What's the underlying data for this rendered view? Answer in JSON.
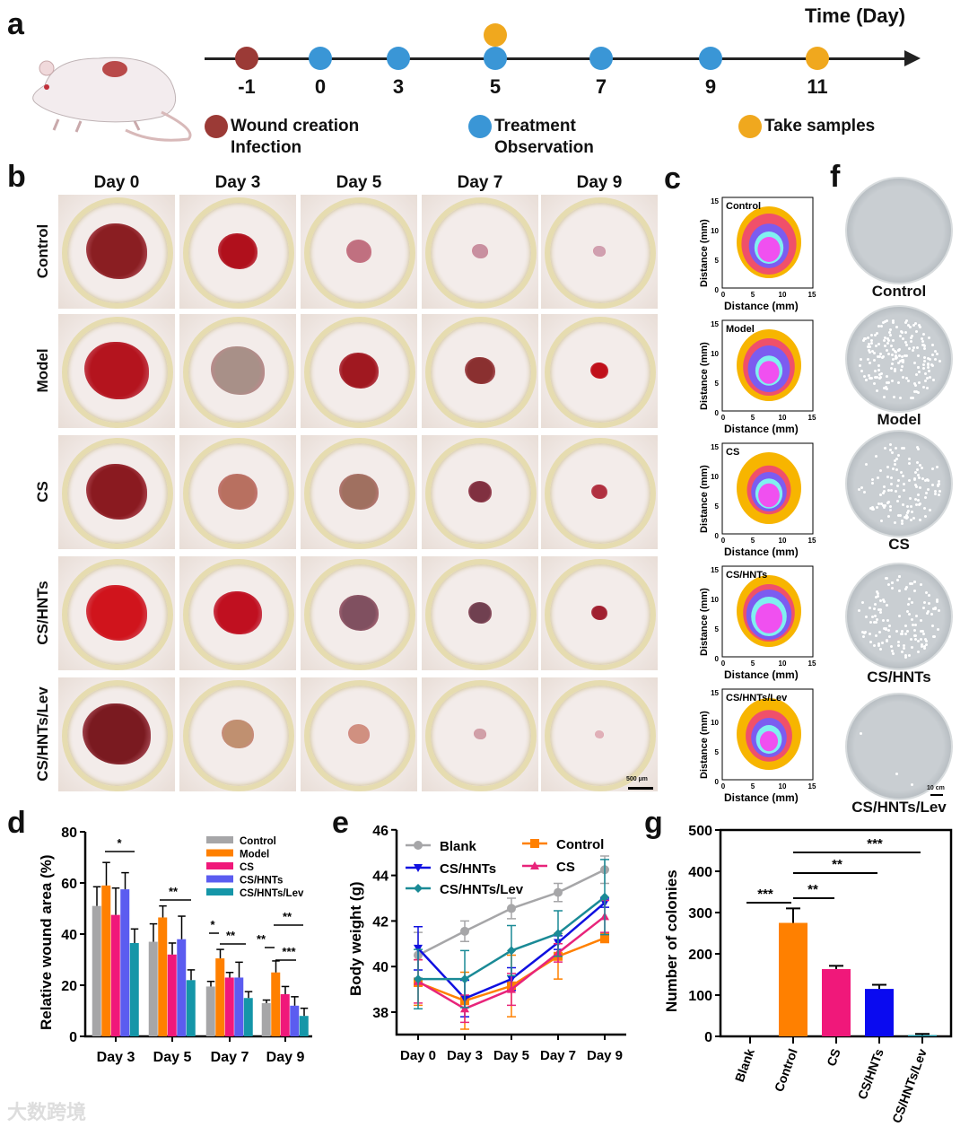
{
  "panels": {
    "a": "a",
    "b": "b",
    "c": "c",
    "d": "d",
    "e": "e",
    "f": "f",
    "g": "g"
  },
  "timeline": {
    "axis_title": "Time (Day)",
    "ticks": [
      "-1",
      "0",
      "3",
      "5",
      "7",
      "9",
      "11"
    ],
    "legend": [
      {
        "line1": "Wound creation",
        "line2": "Infection",
        "color": "#9b3a36"
      },
      {
        "line1": "Treatment",
        "line2": "Observation",
        "color": "#3a96d6"
      },
      {
        "line1": "Take samples",
        "line2": "",
        "color": "#f0a81e"
      }
    ]
  },
  "photos": {
    "columns": [
      "Day 0",
      "Day 3",
      "Day 5",
      "Day 7",
      "Day 9"
    ],
    "rows": [
      "Control",
      "Model",
      "CS",
      "CS/HNTs",
      "CS/HNTs/Lev"
    ],
    "scale_bar": "500 µm"
  },
  "traces": {
    "groups": [
      "Control",
      "Model",
      "CS",
      "CS/HNTs",
      "CS/HNTs/Lev"
    ],
    "xlabel": "Distance (mm)",
    "ylabel": "Distance (mm)",
    "ticks": [
      "0",
      "5",
      "10",
      "15"
    ]
  },
  "dishes": {
    "labels": [
      "Control",
      "Model",
      "CS",
      "CS/HNTs",
      "CS/HNTs/Lev"
    ],
    "scale_bar": "10 cm"
  },
  "chart_data": [
    {
      "id": "d",
      "type": "bar",
      "ylabel": "Relative wound area (%)",
      "ylim": [
        0,
        80
      ],
      "yticks": [
        "0",
        "20",
        "40",
        "60",
        "80"
      ],
      "categories": [
        "Day 3",
        "Day 5",
        "Day 7",
        "Day 9"
      ],
      "series": [
        {
          "name": "Control",
          "color": "#a6a6a8",
          "values": [
            51,
            37,
            19.5,
            13
          ],
          "err": [
            7.5,
            7,
            2,
            1.2
          ]
        },
        {
          "name": "Model",
          "color": "#ff8000",
          "values": [
            59,
            46.5,
            30.5,
            25
          ],
          "err": [
            9,
            4.5,
            3.5,
            4.5
          ]
        },
        {
          "name": "CS",
          "color": "#f0187a",
          "values": [
            47.5,
            32,
            23,
            16.5
          ],
          "err": [
            10.5,
            4.5,
            2,
            3
          ]
        },
        {
          "name": "CS/HNTs",
          "color": "#5b5cf0",
          "values": [
            57.5,
            38,
            23,
            12
          ],
          "err": [
            6.5,
            9,
            6,
            3.5
          ]
        },
        {
          "name": "CS/HNTs/Lev",
          "color": "#1596a8",
          "values": [
            36.5,
            22,
            15,
            8
          ],
          "err": [
            5.5,
            4,
            2.5,
            3
          ]
        }
      ],
      "significance": [
        "*",
        "**",
        "*",
        "**",
        "**",
        "**",
        "***"
      ]
    },
    {
      "id": "e",
      "type": "line",
      "ylabel": "Body weight (g)",
      "ylim": [
        37,
        46
      ],
      "yticks": [
        "38",
        "40",
        "42",
        "44",
        "46"
      ],
      "x": [
        "Day 0",
        "Day 3",
        "Day 5",
        "Day 7",
        "Day 9"
      ],
      "series": [
        {
          "name": "Blank",
          "color": "#a6a6a8",
          "marker": "circle",
          "values": [
            40.5,
            41.55,
            42.55,
            43.25,
            44.25
          ],
          "err": [
            1,
            0.45,
            0.45,
            0.4,
            0.6
          ]
        },
        {
          "name": "Control",
          "color": "#ff8000",
          "marker": "square",
          "values": [
            39.3,
            38.5,
            39.15,
            40.45,
            41.25
          ],
          "err": [
            1,
            1.25,
            1.35,
            1,
            0.2
          ]
        },
        {
          "name": "CS/HNTs",
          "color": "#1010e0",
          "marker": "triangle-down",
          "values": [
            40.8,
            38.6,
            39.45,
            41.05,
            42.8
          ],
          "err": [
            0.95,
            0.8,
            0.5,
            0.3,
            0.2
          ]
        },
        {
          "name": "CS",
          "color": "#e8247a",
          "marker": "triangle-up",
          "values": [
            39.35,
            38.15,
            39.0,
            40.6,
            42.2
          ],
          "err": [
            0.95,
            0.6,
            0.7,
            0.4,
            0.7
          ]
        },
        {
          "name": "CS/HNTs/Lev",
          "color": "#1a8a96",
          "marker": "diamond",
          "values": [
            39.45,
            39.45,
            40.7,
            41.45,
            43.05
          ],
          "err": [
            1.3,
            1.25,
            1.1,
            1,
            1.65
          ]
        }
      ]
    },
    {
      "id": "g",
      "type": "bar",
      "ylabel": "Number of colonies",
      "ylim": [
        0,
        500
      ],
      "yticks": [
        "0",
        "100",
        "200",
        "300",
        "400",
        "500"
      ],
      "categories": [
        "Blank",
        "Control",
        "CS",
        "CS/HNTs",
        "CS/HNTs/Lev"
      ],
      "colors": [
        "#a6a6a8",
        "#ff8000",
        "#f0187a",
        "#0a0af0",
        "#1596a8"
      ],
      "values": [
        0,
        275,
        163,
        115,
        3
      ],
      "err": [
        0,
        35,
        8,
        10,
        3
      ],
      "significance": [
        "***",
        "**",
        "**",
        "***"
      ]
    }
  ],
  "watermark": "大数跨境"
}
